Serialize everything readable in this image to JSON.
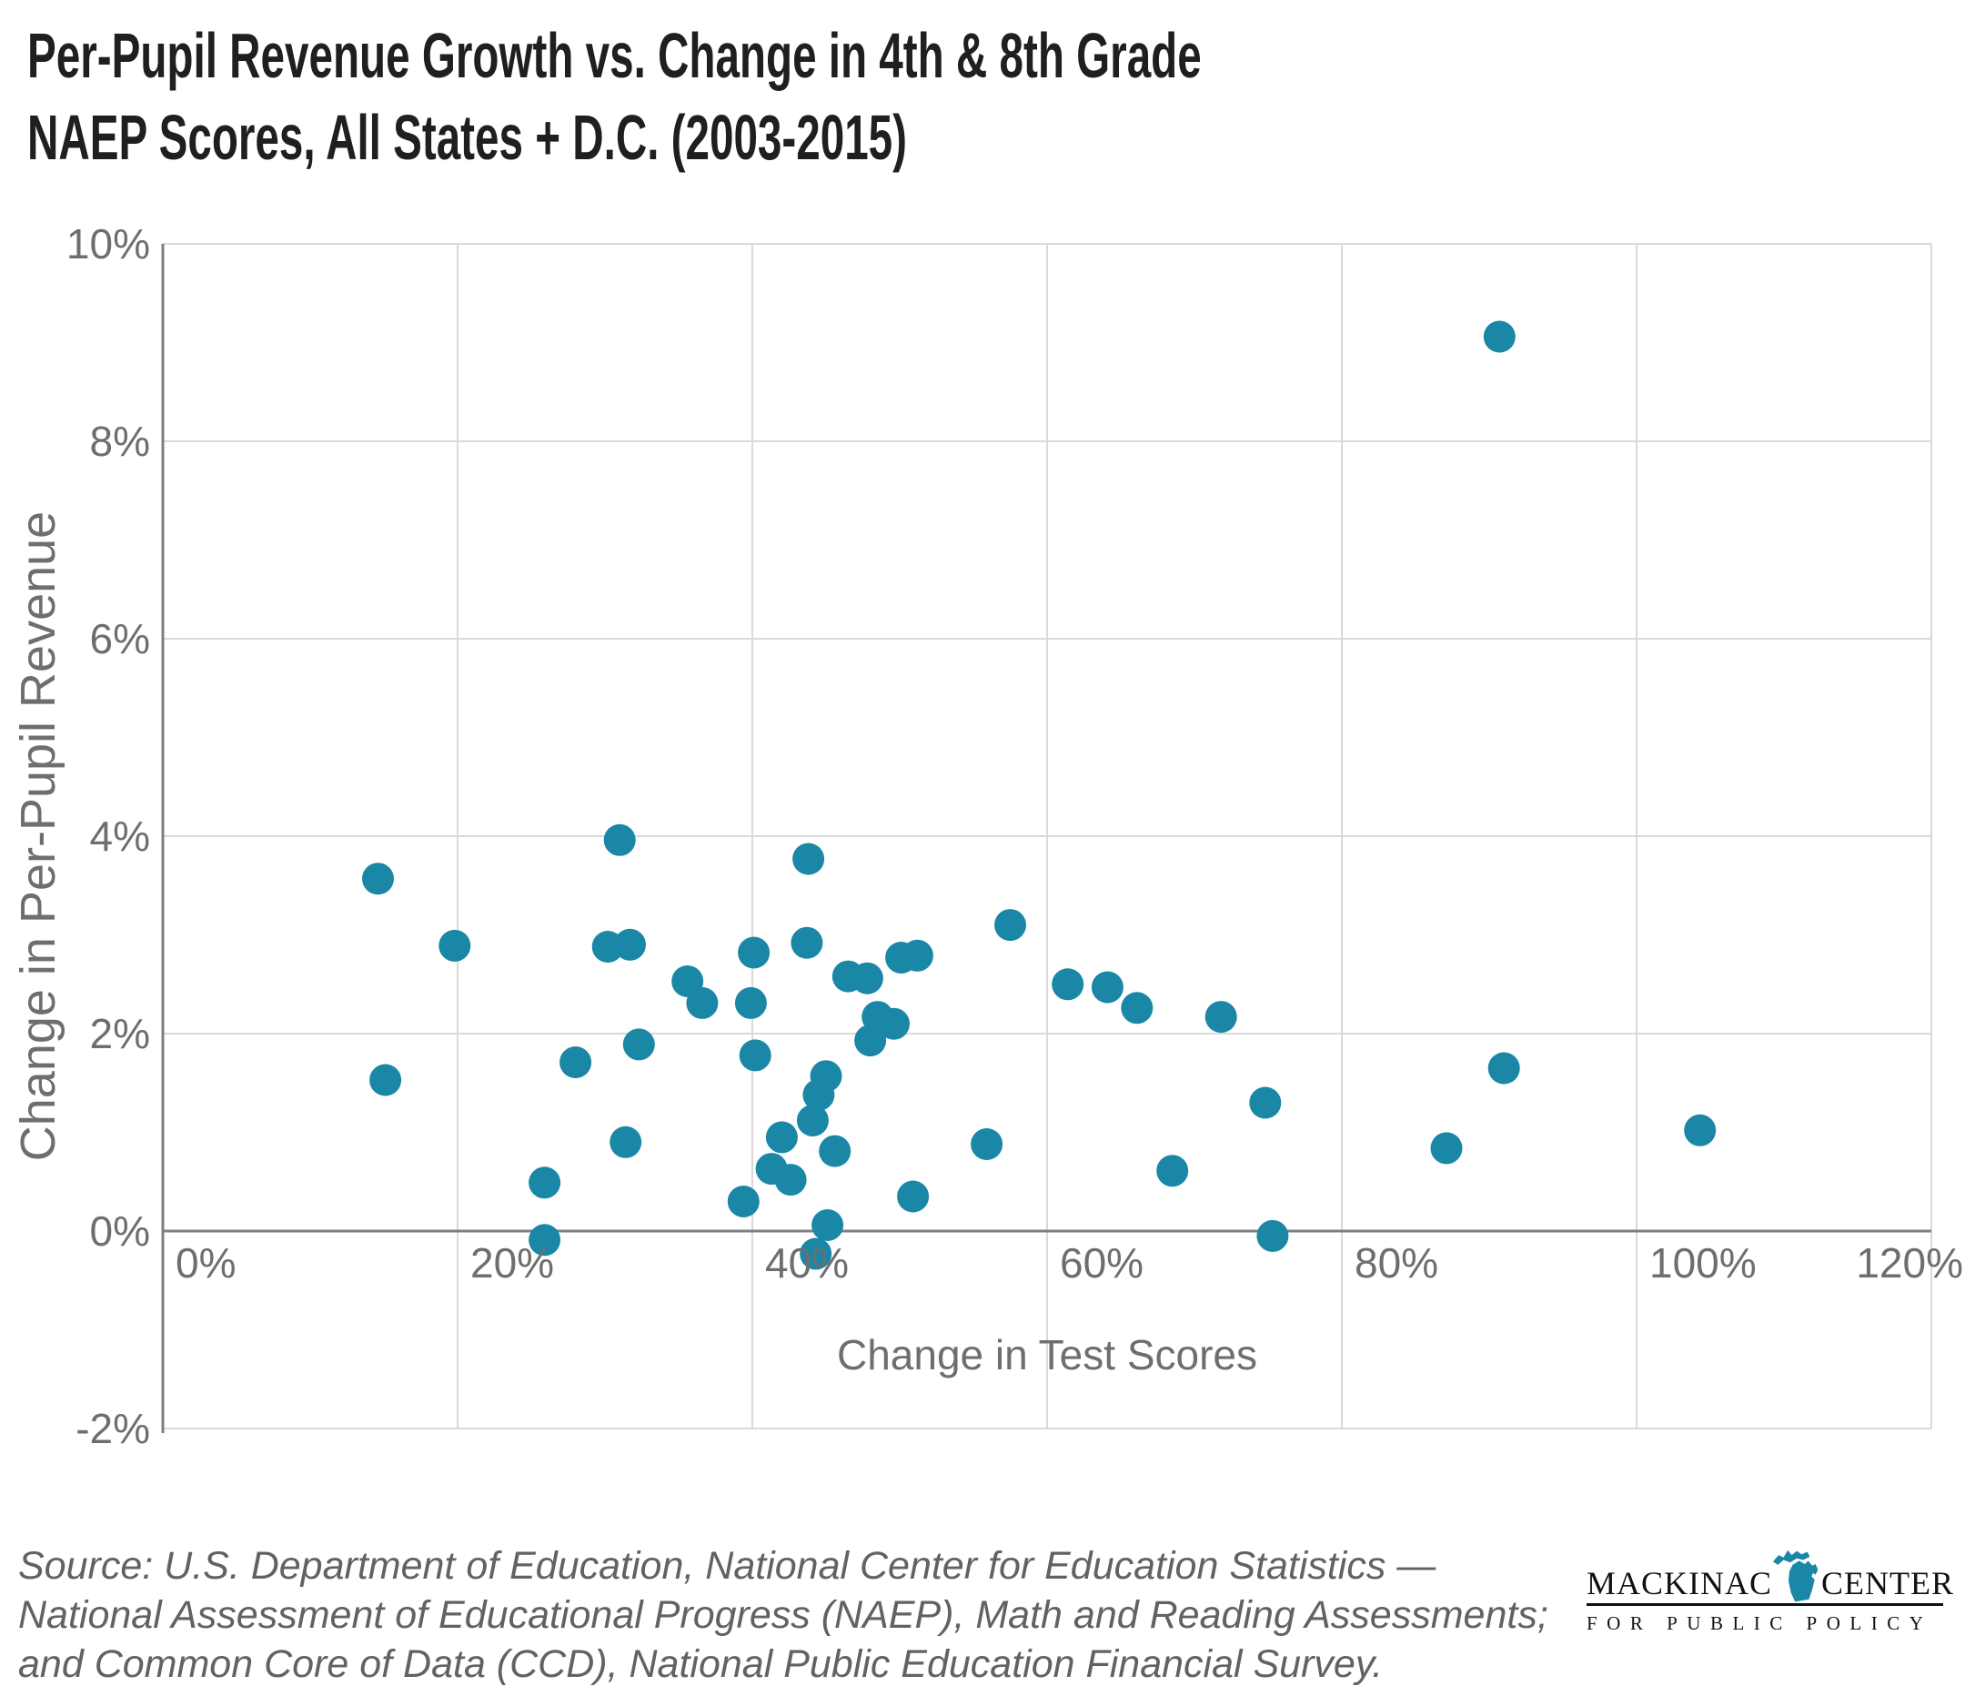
{
  "title": {
    "line1": "Per-Pupil Revenue Growth vs. Change in 4th & 8th Grade",
    "line2": "NAEP Scores, All States + D.C. (2003-2015)"
  },
  "chart_data": {
    "type": "scatter",
    "title": "Per-Pupil Revenue Growth vs. Change in 4th & 8th Grade NAEP Scores, All States + D.C. (2003-2015)",
    "xlabel": "Change in Test Scores",
    "ylabel": "Change in Per-Pupil Revenue",
    "xlim": [
      0,
      120
    ],
    "ylim": [
      -2,
      10
    ],
    "x_ticks": [
      {
        "value": 0,
        "label": "0%"
      },
      {
        "value": 20,
        "label": "20%"
      },
      {
        "value": 40,
        "label": "40%"
      },
      {
        "value": 60,
        "label": "60%"
      },
      {
        "value": 80,
        "label": "80%"
      },
      {
        "value": 100,
        "label": "100%"
      },
      {
        "value": 120,
        "label": "120%"
      }
    ],
    "y_ticks": [
      {
        "value": 10,
        "label": "10%"
      },
      {
        "value": 8,
        "label": "8%"
      },
      {
        "value": 6,
        "label": "6%"
      },
      {
        "value": 4,
        "label": "4%"
      },
      {
        "value": 2,
        "label": "2%"
      },
      {
        "value": 0,
        "label": "0%"
      },
      {
        "value": -2,
        "label": "-2%"
      }
    ],
    "grid": true,
    "legend": "none",
    "point_color": "#1987A5",
    "grid_color": "#d9d9d9",
    "axis_color": "#7f7f7f",
    "points": [
      [
        14.6,
        3.57
      ],
      [
        15.1,
        1.53
      ],
      [
        19.8,
        2.89
      ],
      [
        25.9,
        0.49
      ],
      [
        25.9,
        -0.09
      ],
      [
        28.0,
        1.71
      ],
      [
        30.2,
        2.88
      ],
      [
        31.7,
        2.9
      ],
      [
        31.0,
        3.96
      ],
      [
        32.3,
        1.89
      ],
      [
        31.4,
        0.9
      ],
      [
        35.6,
        2.53
      ],
      [
        36.6,
        2.31
      ],
      [
        39.9,
        2.31
      ],
      [
        40.1,
        2.82
      ],
      [
        43.8,
        3.77
      ],
      [
        43.7,
        2.92
      ],
      [
        46.5,
        2.58
      ],
      [
        47.8,
        2.56
      ],
      [
        50.1,
        2.77
      ],
      [
        51.2,
        2.79
      ],
      [
        57.5,
        3.1
      ],
      [
        48.5,
        2.17
      ],
      [
        49.6,
        2.1
      ],
      [
        48.0,
        1.93
      ],
      [
        40.2,
        1.78
      ],
      [
        45.0,
        1.57
      ],
      [
        44.5,
        1.38
      ],
      [
        44.1,
        1.12
      ],
      [
        42.0,
        0.95
      ],
      [
        41.3,
        0.63
      ],
      [
        42.6,
        0.52
      ],
      [
        45.6,
        0.81
      ],
      [
        39.4,
        0.3
      ],
      [
        45.1,
        0.06
      ],
      [
        44.3,
        -0.23
      ],
      [
        50.9,
        0.35
      ],
      [
        55.9,
        0.88
      ],
      [
        61.4,
        2.5
      ],
      [
        64.1,
        2.47
      ],
      [
        66.1,
        2.26
      ],
      [
        71.8,
        2.17
      ],
      [
        74.8,
        1.3
      ],
      [
        68.5,
        0.61
      ],
      [
        75.3,
        -0.05
      ],
      [
        91.0,
        1.65
      ],
      [
        87.1,
        0.84
      ],
      [
        104.3,
        1.02
      ],
      [
        90.7,
        9.06
      ]
    ]
  },
  "footer": {
    "source_lines": [
      "Source: U.S. Department of Education, National Center for Education Statistics —",
      "National Assessment of Educational Progress (NAEP), Math and Reading Assessments;",
      "and Common Core of Data (CCD), National Public Education Financial Survey."
    ],
    "logo": {
      "word1": "MACKINAC",
      "word2": "CENTER",
      "tagline": "FOR PUBLIC POLICY",
      "michigan_icon_color": "#1987A5"
    }
  }
}
